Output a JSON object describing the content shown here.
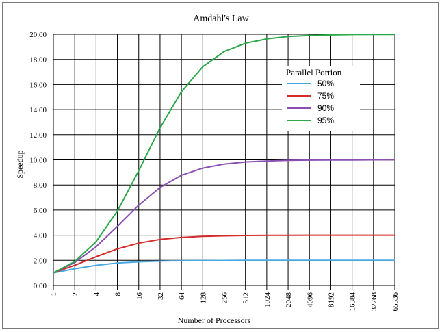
{
  "chart_data": {
    "type": "line",
    "title": "Amdahl's Law",
    "xlabel": "Number of Processors",
    "ylabel": "Speedup",
    "x_categories": [
      "1",
      "2",
      "4",
      "8",
      "16",
      "32",
      "64",
      "128",
      "256",
      "512",
      "1024",
      "2048",
      "4096",
      "8192",
      "16384",
      "32768",
      "65536"
    ],
    "y_ticks": [
      "0.00",
      "2.00",
      "4.00",
      "6.00",
      "8.00",
      "10.00",
      "12.00",
      "14.00",
      "16.00",
      "18.00",
      "20.00"
    ],
    "ylim": [
      0,
      20
    ],
    "x_scale": "log2",
    "grid": true,
    "legend": {
      "title": "Parallel Portion",
      "position": "top-right"
    },
    "series": [
      {
        "name": "50%",
        "color": "#4aa8e0",
        "values": [
          1.0,
          1.33,
          1.6,
          1.78,
          1.88,
          1.94,
          1.97,
          1.98,
          1.99,
          2.0,
          2.0,
          2.0,
          2.0,
          2.0,
          2.0,
          2.0,
          2.0
        ]
      },
      {
        "name": "75%",
        "color": "#d42a2a",
        "values": [
          1.0,
          1.6,
          2.29,
          2.91,
          3.37,
          3.66,
          3.82,
          3.91,
          3.95,
          3.98,
          3.99,
          3.99,
          4.0,
          4.0,
          4.0,
          4.0,
          4.0
        ]
      },
      {
        "name": "90%",
        "color": "#8a4fb0",
        "values": [
          1.0,
          1.82,
          3.08,
          4.71,
          6.4,
          7.8,
          8.77,
          9.34,
          9.66,
          9.83,
          9.91,
          9.96,
          9.98,
          9.99,
          9.99,
          10.0,
          10.0
        ]
      },
      {
        "name": "95%",
        "color": "#2aa84a",
        "values": [
          1.0,
          1.9,
          3.48,
          5.93,
          9.14,
          12.55,
          15.42,
          17.41,
          18.62,
          19.28,
          19.63,
          19.82,
          19.91,
          19.95,
          19.98,
          19.99,
          19.99
        ]
      }
    ]
  }
}
